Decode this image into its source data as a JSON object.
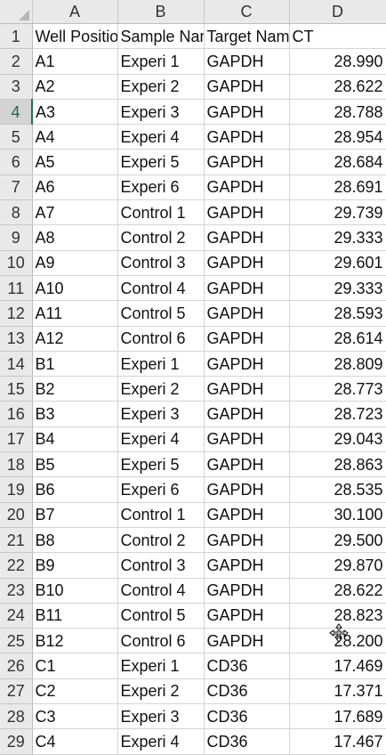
{
  "columns": [
    "A",
    "B",
    "C",
    "D"
  ],
  "active_row": 4,
  "rows": [
    {
      "n": "1",
      "a": "Well Position",
      "b": "Sample Name",
      "c": "Target Name",
      "d": "CT",
      "header": true
    },
    {
      "n": "2",
      "a": "A1",
      "b": "Experi 1",
      "c": "GAPDH",
      "d": "28.990"
    },
    {
      "n": "3",
      "a": "A2",
      "b": "Experi 2",
      "c": "GAPDH",
      "d": "28.622"
    },
    {
      "n": "4",
      "a": "A3",
      "b": "Experi 3",
      "c": "GAPDH",
      "d": "28.788"
    },
    {
      "n": "5",
      "a": "A4",
      "b": "Experi 4",
      "c": "GAPDH",
      "d": "28.954"
    },
    {
      "n": "6",
      "a": "A5",
      "b": "Experi 5",
      "c": "GAPDH",
      "d": "28.684"
    },
    {
      "n": "7",
      "a": "A6",
      "b": "Experi 6",
      "c": "GAPDH",
      "d": "28.691"
    },
    {
      "n": "8",
      "a": "A7",
      "b": "Control 1",
      "c": "GAPDH",
      "d": "29.739"
    },
    {
      "n": "9",
      "a": "A8",
      "b": "Control 2",
      "c": "GAPDH",
      "d": "29.333"
    },
    {
      "n": "10",
      "a": "A9",
      "b": "Control 3",
      "c": "GAPDH",
      "d": "29.601"
    },
    {
      "n": "11",
      "a": "A10",
      "b": "Control 4",
      "c": "GAPDH",
      "d": "29.333"
    },
    {
      "n": "12",
      "a": "A11",
      "b": "Control 5",
      "c": "GAPDH",
      "d": "28.593"
    },
    {
      "n": "13",
      "a": "A12",
      "b": "Control 6",
      "c": "GAPDH",
      "d": "28.614"
    },
    {
      "n": "14",
      "a": "B1",
      "b": "Experi 1",
      "c": "GAPDH",
      "d": "28.809"
    },
    {
      "n": "15",
      "a": "B2",
      "b": "Experi 2",
      "c": "GAPDH",
      "d": "28.773"
    },
    {
      "n": "16",
      "a": "B3",
      "b": "Experi 3",
      "c": "GAPDH",
      "d": "28.723"
    },
    {
      "n": "17",
      "a": "B4",
      "b": "Experi 4",
      "c": "GAPDH",
      "d": "29.043"
    },
    {
      "n": "18",
      "a": "B5",
      "b": "Experi 5",
      "c": "GAPDH",
      "d": "28.863"
    },
    {
      "n": "19",
      "a": "B6",
      "b": "Experi 6",
      "c": "GAPDH",
      "d": "28.535"
    },
    {
      "n": "20",
      "a": "B7",
      "b": "Control 1",
      "c": "GAPDH",
      "d": "30.100"
    },
    {
      "n": "21",
      "a": "B8",
      "b": "Control 2",
      "c": "GAPDH",
      "d": "29.500"
    },
    {
      "n": "22",
      "a": "B9",
      "b": "Control 3",
      "c": "GAPDH",
      "d": "29.870"
    },
    {
      "n": "23",
      "a": "B10",
      "b": "Control 4",
      "c": "GAPDH",
      "d": "28.622"
    },
    {
      "n": "24",
      "a": "B11",
      "b": "Control 5",
      "c": "GAPDH",
      "d": "28.823"
    },
    {
      "n": "25",
      "a": "B12",
      "b": "Control 6",
      "c": "GAPDH",
      "d": "28.200"
    },
    {
      "n": "26",
      "a": "C1",
      "b": "Experi 1",
      "c": "CD36",
      "d": "17.469"
    },
    {
      "n": "27",
      "a": "C2",
      "b": "Experi 2",
      "c": "CD36",
      "d": "17.371"
    },
    {
      "n": "28",
      "a": "C3",
      "b": "Experi 3",
      "c": "CD36",
      "d": "17.689"
    },
    {
      "n": "29",
      "a": "C4",
      "b": "Experi 4",
      "c": "CD36",
      "d": "17.467"
    }
  ]
}
